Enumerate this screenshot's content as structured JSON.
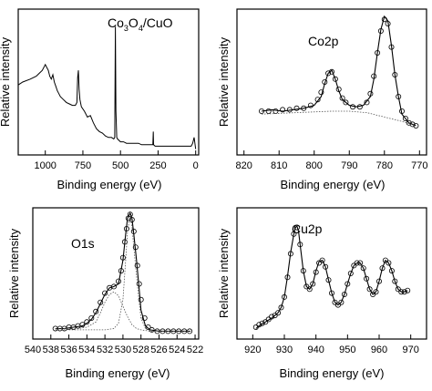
{
  "chart_data": [
    {
      "id": "survey",
      "type": "line",
      "title": "Co3O4/CuO",
      "title_parts": [
        "Co",
        "3",
        "O",
        "4",
        "/CuO"
      ],
      "xlabel": "Binding energy (eV)",
      "ylabel": "Relative intensity",
      "xlim": [
        1180,
        -20
      ],
      "ylim": [
        0,
        1
      ],
      "xticks": [
        1000,
        750,
        500,
        250,
        0
      ],
      "series": [
        {
          "kind": "line",
          "x": [
            1180,
            1150,
            1100,
            1060,
            1040,
            1020,
            1000,
            990,
            980,
            970,
            960,
            950,
            940,
            930,
            920,
            910,
            900,
            880,
            860,
            840,
            820,
            800,
            790,
            785,
            780,
            775,
            770,
            760,
            740,
            720,
            700,
            680,
            660,
            640,
            620,
            600,
            580,
            560,
            545,
            538,
            534,
            530,
            525,
            520,
            500,
            480,
            460,
            440,
            420,
            400,
            380,
            360,
            340,
            320,
            300,
            290,
            285,
            282,
            280,
            270,
            250,
            200,
            150,
            100,
            60,
            40,
            30,
            20,
            10,
            0
          ],
          "y": [
            0.48,
            0.5,
            0.52,
            0.54,
            0.56,
            0.58,
            0.62,
            0.6,
            0.58,
            0.54,
            0.52,
            0.55,
            0.5,
            0.47,
            0.44,
            0.42,
            0.4,
            0.38,
            0.36,
            0.35,
            0.34,
            0.34,
            0.36,
            0.53,
            0.58,
            0.45,
            0.38,
            0.33,
            0.3,
            0.26,
            0.27,
            0.22,
            0.18,
            0.16,
            0.15,
            0.13,
            0.12,
            0.12,
            0.11,
            0.12,
            0.88,
            0.3,
            0.12,
            0.11,
            0.09,
            0.09,
            0.08,
            0.08,
            0.08,
            0.08,
            0.08,
            0.07,
            0.07,
            0.07,
            0.07,
            0.07,
            0.07,
            0.16,
            0.07,
            0.06,
            0.06,
            0.06,
            0.06,
            0.06,
            0.06,
            0.06,
            0.06,
            0.08,
            0.12,
            0.04
          ]
        }
      ]
    },
    {
      "id": "co2p",
      "type": "line",
      "title": "Co2p",
      "xlabel": "Binding energy (eV)",
      "ylabel": "Relative intensity",
      "xlim": [
        822,
        768
      ],
      "ylim": [
        0,
        1
      ],
      "xticks": [
        820,
        810,
        800,
        790,
        780,
        770
      ],
      "series": [
        {
          "kind": "line",
          "x": [
            815,
            812,
            809,
            806,
            803,
            800,
            798,
            797,
            796,
            795,
            794,
            793,
            792,
            790,
            788,
            786,
            784,
            783,
            782,
            781,
            780,
            779,
            778,
            777,
            776,
            775,
            773,
            771
          ],
          "y": [
            0.3,
            0.31,
            0.3,
            0.31,
            0.32,
            0.34,
            0.4,
            0.49,
            0.56,
            0.58,
            0.52,
            0.44,
            0.38,
            0.34,
            0.33,
            0.34,
            0.4,
            0.52,
            0.7,
            0.86,
            0.95,
            0.92,
            0.75,
            0.55,
            0.4,
            0.28,
            0.22,
            0.2
          ]
        },
        {
          "kind": "circles",
          "x": [
            815,
            813,
            811,
            809,
            807,
            805,
            803,
            801,
            799,
            798,
            797,
            796,
            795,
            794,
            793,
            792,
            791,
            789,
            787,
            785,
            784,
            783,
            782,
            781,
            780,
            779,
            778,
            777,
            776,
            775,
            774,
            773,
            772,
            771
          ],
          "y": [
            0.3,
            0.3,
            0.3,
            0.31,
            0.31,
            0.32,
            0.32,
            0.34,
            0.38,
            0.43,
            0.5,
            0.56,
            0.57,
            0.52,
            0.45,
            0.39,
            0.36,
            0.33,
            0.33,
            0.36,
            0.42,
            0.54,
            0.7,
            0.85,
            0.93,
            0.9,
            0.74,
            0.55,
            0.4,
            0.3,
            0.25,
            0.22,
            0.21,
            0.2
          ]
        },
        {
          "kind": "background",
          "x": [
            815,
            805,
            795,
            790,
            785,
            780,
            775,
            771
          ],
          "y": [
            0.28,
            0.29,
            0.3,
            0.3,
            0.29,
            0.26,
            0.23,
            0.2
          ]
        }
      ]
    },
    {
      "id": "o1s",
      "type": "line",
      "title": "O1s",
      "xlabel": "Binding energy (eV)",
      "ylabel": "Relative intensity",
      "xlim": [
        540,
        521.6
      ],
      "ylim": [
        0,
        1
      ],
      "xticks": [
        540,
        538,
        536,
        534,
        532,
        530,
        528,
        526,
        524,
        522
      ],
      "series": [
        {
          "kind": "line",
          "x": [
            537.5,
            536.5,
            535.5,
            534.5,
            534,
            533.5,
            533,
            532.5,
            532,
            531.5,
            531,
            530.5,
            530,
            529.7,
            529.5,
            529.2,
            529,
            528.8,
            528.5,
            528.2,
            528,
            527.5,
            527,
            526,
            525,
            524,
            523,
            522.5
          ],
          "y": [
            0.08,
            0.08,
            0.09,
            0.1,
            0.12,
            0.15,
            0.2,
            0.27,
            0.34,
            0.39,
            0.4,
            0.42,
            0.6,
            0.8,
            0.92,
            0.96,
            0.92,
            0.8,
            0.6,
            0.38,
            0.22,
            0.1,
            0.07,
            0.06,
            0.06,
            0.06,
            0.06,
            0.06
          ]
        },
        {
          "kind": "circles",
          "x": [
            537.5,
            537,
            536.5,
            536,
            535.5,
            535,
            534.5,
            534,
            533.5,
            533,
            532.5,
            532,
            531.5,
            531,
            530.5,
            530.2,
            530,
            529.8,
            529.6,
            529.4,
            529.2,
            529,
            528.8,
            528.6,
            528.4,
            528.2,
            528,
            527.6,
            527.2,
            526.8,
            526.2,
            525.6,
            525,
            524.4,
            523.8,
            523.2,
            522.6
          ],
          "y": [
            0.08,
            0.08,
            0.08,
            0.09,
            0.09,
            0.1,
            0.11,
            0.13,
            0.16,
            0.21,
            0.28,
            0.35,
            0.39,
            0.4,
            0.44,
            0.52,
            0.62,
            0.74,
            0.84,
            0.92,
            0.95,
            0.91,
            0.82,
            0.7,
            0.56,
            0.42,
            0.3,
            0.16,
            0.09,
            0.07,
            0.06,
            0.06,
            0.06,
            0.06,
            0.06,
            0.06,
            0.06
          ]
        },
        {
          "kind": "component",
          "x": [
            537.5,
            535,
            534,
            533,
            532.5,
            532,
            531.5,
            531,
            530.5,
            530,
            529.5,
            529,
            528.5,
            528,
            527,
            526,
            522.5
          ],
          "y": [
            0.08,
            0.08,
            0.09,
            0.13,
            0.2,
            0.28,
            0.34,
            0.36,
            0.33,
            0.25,
            0.17,
            0.11,
            0.08,
            0.07,
            0.06,
            0.06,
            0.06
          ]
        },
        {
          "kind": "component",
          "x": [
            537.5,
            532,
            531,
            530.5,
            530,
            529.7,
            529.5,
            529.2,
            529,
            528.8,
            528.5,
            528.2,
            528,
            527.5,
            527,
            522.5
          ],
          "y": [
            0.07,
            0.07,
            0.08,
            0.12,
            0.3,
            0.6,
            0.82,
            0.94,
            0.86,
            0.7,
            0.48,
            0.28,
            0.16,
            0.08,
            0.06,
            0.06
          ]
        }
      ]
    },
    {
      "id": "cu2p",
      "type": "line",
      "title": "Cu2p",
      "xlabel": "Binding energy (eV)",
      "ylabel": "Relative intensity",
      "xlim": [
        915,
        975
      ],
      "ylim": [
        0,
        1
      ],
      "xticks": [
        920,
        930,
        940,
        950,
        960,
        970
      ],
      "series": [
        {
          "kind": "line",
          "x": [
            921,
            922,
            924,
            926,
            928,
            929,
            930,
            931,
            932,
            933,
            933.5,
            934,
            934.5,
            935,
            936,
            937,
            938,
            939,
            940,
            941,
            942,
            943,
            944,
            945,
            946,
            947,
            948,
            949,
            950,
            951,
            952,
            953,
            954,
            955,
            956,
            957,
            958,
            959,
            960,
            961,
            962,
            963,
            964,
            965,
            966,
            967,
            968,
            969
          ],
          "y": [
            0.08,
            0.1,
            0.13,
            0.16,
            0.2,
            0.24,
            0.32,
            0.48,
            0.66,
            0.8,
            0.85,
            0.86,
            0.82,
            0.72,
            0.52,
            0.4,
            0.38,
            0.42,
            0.52,
            0.59,
            0.6,
            0.55,
            0.45,
            0.35,
            0.28,
            0.26,
            0.28,
            0.34,
            0.42,
            0.5,
            0.56,
            0.58,
            0.58,
            0.54,
            0.46,
            0.38,
            0.34,
            0.36,
            0.44,
            0.54,
            0.6,
            0.58,
            0.52,
            0.44,
            0.38,
            0.36,
            0.36,
            0.37
          ]
        },
        {
          "kind": "circles",
          "x": [
            921,
            922,
            923,
            924,
            925,
            926,
            927,
            928,
            929,
            930,
            931,
            932,
            933,
            934,
            935,
            936,
            937,
            938,
            939,
            940,
            941,
            942,
            943,
            944,
            945,
            946,
            947,
            948,
            949,
            950,
            951,
            952,
            953,
            954,
            955,
            956,
            957,
            958,
            959,
            960,
            961,
            962,
            963,
            964,
            965,
            966,
            967,
            968,
            969
          ],
          "y": [
            0.09,
            0.11,
            0.12,
            0.13,
            0.15,
            0.17,
            0.18,
            0.2,
            0.24,
            0.32,
            0.47,
            0.65,
            0.8,
            0.85,
            0.72,
            0.52,
            0.4,
            0.38,
            0.42,
            0.51,
            0.58,
            0.6,
            0.55,
            0.45,
            0.35,
            0.28,
            0.26,
            0.28,
            0.34,
            0.42,
            0.5,
            0.56,
            0.58,
            0.58,
            0.54,
            0.46,
            0.38,
            0.34,
            0.36,
            0.44,
            0.54,
            0.6,
            0.58,
            0.52,
            0.44,
            0.38,
            0.36,
            0.36,
            0.37
          ]
        }
      ]
    }
  ]
}
